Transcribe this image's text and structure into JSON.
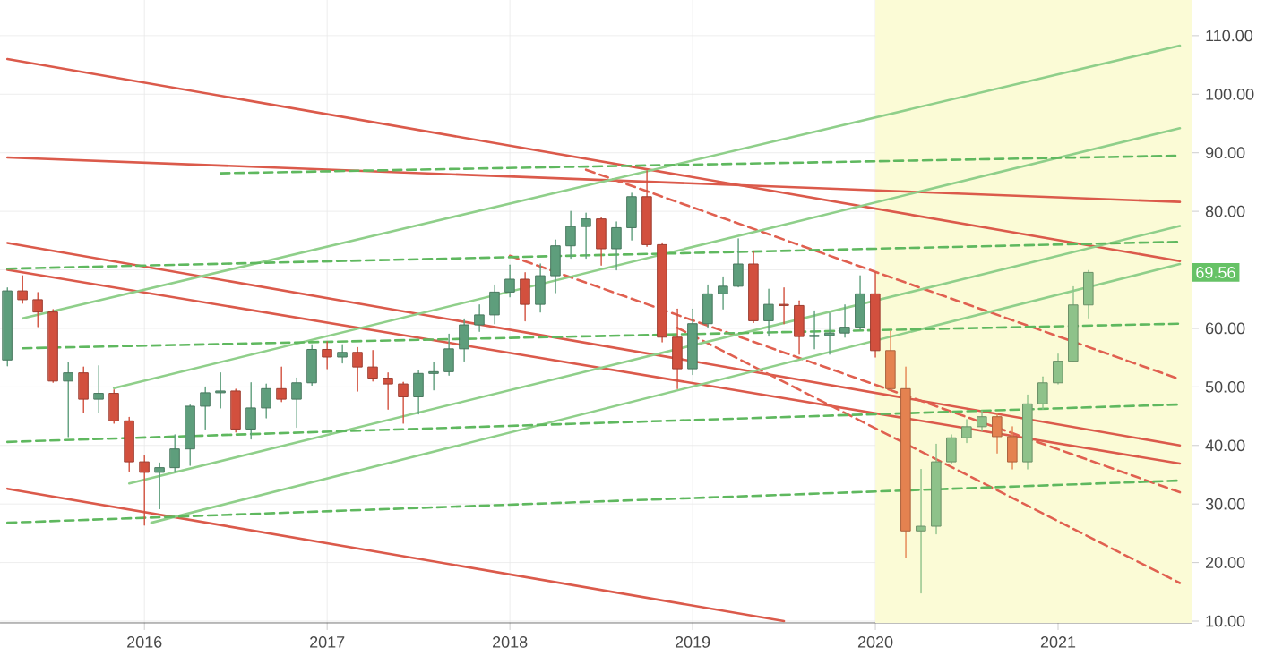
{
  "chart_data": {
    "type": "candlestick",
    "x": [
      "2015-04",
      "2015-05",
      "2015-06",
      "2015-07",
      "2015-08",
      "2015-09",
      "2015-10",
      "2015-11",
      "2015-12",
      "2016-01",
      "2016-02",
      "2016-03",
      "2016-04",
      "2016-05",
      "2016-06",
      "2016-07",
      "2016-08",
      "2016-09",
      "2016-10",
      "2016-11",
      "2016-12",
      "2017-01",
      "2017-02",
      "2017-03",
      "2017-04",
      "2017-05",
      "2017-06",
      "2017-07",
      "2017-08",
      "2017-09",
      "2017-10",
      "2017-11",
      "2017-12",
      "2018-01",
      "2018-02",
      "2018-03",
      "2018-04",
      "2018-05",
      "2018-06",
      "2018-07",
      "2018-08",
      "2018-09",
      "2018-10",
      "2018-11",
      "2018-12",
      "2019-01",
      "2019-02",
      "2019-03",
      "2019-04",
      "2019-05",
      "2019-06",
      "2019-07",
      "2019-08",
      "2019-09",
      "2019-10",
      "2019-11",
      "2019-12",
      "2020-01",
      "2020-02",
      "2020-03",
      "2020-04",
      "2020-05",
      "2020-06",
      "2020-07",
      "2020-08",
      "2020-09",
      "2020-10",
      "2020-11",
      "2020-12",
      "2021-01",
      "2021-02",
      "2021-03"
    ],
    "ohlc": [
      [
        54.6,
        66.9,
        53.6,
        66.4
      ],
      [
        66.4,
        69.0,
        64.3,
        64.9
      ],
      [
        64.9,
        66.1,
        60.3,
        62.8
      ],
      [
        62.8,
        63.2,
        50.8,
        51.0
      ],
      [
        51.0,
        54.1,
        41.5,
        52.4
      ],
      [
        52.4,
        53.4,
        45.6,
        47.9
      ],
      [
        47.9,
        53.6,
        45.6,
        48.9
      ],
      [
        48.9,
        49.5,
        43.8,
        44.2
      ],
      [
        44.2,
        44.8,
        35.6,
        37.2
      ],
      [
        37.2,
        38.2,
        26.4,
        35.4
      ],
      [
        35.4,
        37.0,
        29.2,
        36.2
      ],
      [
        36.2,
        41.8,
        35.6,
        39.4
      ],
      [
        39.4,
        46.9,
        36.6,
        46.7
      ],
      [
        46.7,
        50.0,
        42.8,
        49.0
      ],
      [
        49.0,
        52.4,
        46.4,
        49.3
      ],
      [
        49.3,
        49.6,
        42.3,
        42.8
      ],
      [
        42.8,
        50.7,
        41.1,
        46.4
      ],
      [
        46.4,
        50.5,
        44.7,
        49.7
      ],
      [
        49.7,
        53.4,
        47.5,
        47.9
      ],
      [
        47.9,
        51.5,
        43.1,
        50.7
      ],
      [
        50.7,
        57.2,
        50.3,
        56.4
      ],
      [
        56.4,
        57.7,
        53.1,
        55.1
      ],
      [
        55.1,
        57.2,
        54.1,
        55.9
      ],
      [
        55.9,
        56.7,
        49.3,
        53.4
      ],
      [
        53.4,
        56.2,
        51.0,
        51.5
      ],
      [
        51.5,
        52.4,
        46.2,
        50.5
      ],
      [
        50.5,
        50.8,
        43.8,
        48.3
      ],
      [
        48.3,
        52.8,
        45.4,
        52.3
      ],
      [
        52.3,
        54.1,
        49.5,
        52.6
      ],
      [
        52.6,
        59.0,
        52.0,
        56.5
      ],
      [
        56.5,
        61.6,
        54.4,
        60.6
      ],
      [
        60.6,
        64.0,
        59.5,
        62.3
      ],
      [
        62.3,
        67.4,
        60.8,
        66.2
      ],
      [
        66.2,
        70.8,
        65.4,
        68.4
      ],
      [
        68.4,
        69.5,
        61.3,
        64.1
      ],
      [
        64.1,
        71.0,
        62.8,
        69.0
      ],
      [
        69.0,
        75.1,
        66.1,
        74.1
      ],
      [
        74.1,
        80.0,
        72.0,
        77.4
      ],
      [
        77.4,
        79.7,
        72.0,
        78.7
      ],
      [
        78.7,
        79.0,
        70.8,
        73.6
      ],
      [
        73.6,
        78.2,
        70.0,
        77.2
      ],
      [
        77.2,
        83.1,
        75.1,
        82.5
      ],
      [
        82.5,
        86.9,
        74.0,
        74.3
      ],
      [
        74.3,
        74.6,
        57.7,
        58.5
      ],
      [
        58.5,
        63.3,
        49.7,
        53.1
      ],
      [
        53.1,
        63.3,
        52.1,
        60.8
      ],
      [
        60.8,
        67.4,
        60.2,
        65.9
      ],
      [
        65.9,
        68.8,
        63.3,
        67.2
      ],
      [
        67.2,
        75.3,
        67.1,
        71.0
      ],
      [
        71.0,
        73.1,
        61.0,
        61.3
      ],
      [
        61.3,
        66.7,
        58.7,
        64.1
      ],
      [
        64.1,
        66.9,
        60.8,
        63.9
      ],
      [
        63.9,
        64.7,
        55.6,
        58.6
      ],
      [
        58.6,
        63.0,
        56.5,
        58.8
      ],
      [
        58.8,
        62.6,
        55.6,
        59.2
      ],
      [
        59.2,
        64.0,
        58.5,
        60.2
      ],
      [
        60.2,
        69.0,
        59.8,
        65.9
      ],
      [
        65.9,
        69.5,
        55.1,
        56.2
      ],
      [
        56.2,
        59.5,
        49.5,
        49.7
      ],
      [
        49.7,
        53.4,
        20.8,
        25.4
      ],
      [
        25.4,
        35.9,
        14.8,
        26.2
      ],
      [
        26.2,
        40.2,
        24.9,
        37.2
      ],
      [
        37.2,
        41.8,
        37.0,
        41.3
      ],
      [
        41.3,
        44.4,
        40.5,
        43.2
      ],
      [
        43.2,
        45.9,
        42.5,
        44.9
      ],
      [
        44.9,
        45.4,
        38.7,
        41.5
      ],
      [
        41.5,
        43.2,
        36.0,
        37.2
      ],
      [
        37.2,
        48.6,
        36.0,
        47.1
      ],
      [
        47.1,
        51.7,
        46.2,
        50.7
      ],
      [
        50.7,
        55.6,
        50.5,
        54.4
      ],
      [
        54.4,
        67.1,
        54.4,
        64.0
      ],
      [
        64.0,
        69.9,
        61.8,
        69.56
      ]
    ],
    "colors": [
      "#5e9e7c",
      "#d2503e",
      "#d2503e",
      "#d2503e",
      "#5e9e7c",
      "#d2503e",
      "#5e9e7c",
      "#d2503e",
      "#d2503e",
      "#d2503e",
      "#5e9e7c",
      "#5e9e7c",
      "#5e9e7c",
      "#5e9e7c",
      "#5e9e7c",
      "#d2503e",
      "#5e9e7c",
      "#5e9e7c",
      "#d2503e",
      "#5e9e7c",
      "#5e9e7c",
      "#d2503e",
      "#5e9e7c",
      "#d2503e",
      "#d2503e",
      "#d2503e",
      "#d2503e",
      "#5e9e7c",
      "#5e9e7c",
      "#5e9e7c",
      "#5e9e7c",
      "#5e9e7c",
      "#5e9e7c",
      "#5e9e7c",
      "#d2503e",
      "#5e9e7c",
      "#5e9e7c",
      "#5e9e7c",
      "#5e9e7c",
      "#d2503e",
      "#5e9e7c",
      "#5e9e7c",
      "#d2503e",
      "#d2503e",
      "#d2503e",
      "#5e9e7c",
      "#5e9e7c",
      "#5e9e7c",
      "#5e9e7c",
      "#d2503e",
      "#5e9e7c",
      "#d2503e",
      "#d2503e",
      "#5e9e7c",
      "#5e9e7c",
      "#5e9e7c",
      "#5e9e7c",
      "#d2503e",
      "#e48250",
      "#e48250",
      "#8ec28a",
      "#8ec28a",
      "#8ec28a",
      "#8ec28a",
      "#8ec28a",
      "#e48250",
      "#e48250",
      "#8ec28a",
      "#8ec28a",
      "#8ec28a",
      "#8ec28a",
      "#8ec28a"
    ],
    "series": [
      {
        "type": "line",
        "line_style": "solid",
        "color": "#db5a4b",
        "x": [
          "2015-04",
          "2021-09"
        ],
        "values": [
          106.0,
          71.5
        ]
      },
      {
        "type": "line",
        "line_style": "solid",
        "color": "#db5a4b",
        "x": [
          "2015-04",
          "2021-09"
        ],
        "values": [
          89.2,
          81.6
        ]
      },
      {
        "type": "line",
        "line_style": "solid",
        "color": "#db5a4b",
        "x": [
          "2015-04",
          "2021-09"
        ],
        "values": [
          74.6,
          40.0
        ]
      },
      {
        "type": "line",
        "line_style": "solid",
        "color": "#db5a4b",
        "x": [
          "2015-04",
          "2021-09"
        ],
        "values": [
          70.0,
          36.9
        ]
      },
      {
        "type": "line",
        "line_style": "solid",
        "color": "#db5a4b",
        "x": [
          "2015-04",
          "2019-07"
        ],
        "values": [
          32.6,
          10.0
        ]
      },
      {
        "type": "line",
        "line_style": "dashed",
        "color": "#e06050",
        "x": [
          "2018-06",
          "2021-09"
        ],
        "values": [
          87.1,
          51.3
        ]
      },
      {
        "type": "line",
        "line_style": "dashed",
        "color": "#e06050",
        "x": [
          "2018-01",
          "2021-09"
        ],
        "values": [
          72.4,
          32.0
        ]
      },
      {
        "type": "line",
        "line_style": "dashed",
        "color": "#e06050",
        "x": [
          "2018-12",
          "2021-09"
        ],
        "values": [
          60.1,
          16.5
        ]
      },
      {
        "type": "line",
        "line_style": "solid",
        "color": "#8fcf8a",
        "x": [
          "2015-05",
          "2021-09"
        ],
        "values": [
          61.7,
          108.3
        ]
      },
      {
        "type": "line",
        "line_style": "solid",
        "color": "#8fcf8a",
        "x": [
          "2015-11",
          "2021-09"
        ],
        "values": [
          49.8,
          94.2
        ]
      },
      {
        "type": "line",
        "line_style": "solid",
        "color": "#8fcf8a",
        "x": [
          "2015-12",
          "2021-09"
        ],
        "values": [
          33.5,
          77.5
        ]
      },
      {
        "type": "line",
        "line_style": "solid",
        "color": "#8fcf8a",
        "x": [
          "2016-01-15",
          "2021-09"
        ],
        "values": [
          26.8,
          71.0
        ]
      },
      {
        "type": "line",
        "line_style": "dashed",
        "color": "#5fb85f",
        "x": [
          "2016-06",
          "2021-09"
        ],
        "values": [
          86.5,
          89.5
        ]
      },
      {
        "type": "line",
        "line_style": "dashed",
        "color": "#5fb85f",
        "x": [
          "2015-04",
          "2021-09"
        ],
        "values": [
          70.2,
          74.8
        ]
      },
      {
        "type": "line",
        "line_style": "dashed",
        "color": "#5fb85f",
        "x": [
          "2015-05",
          "2021-09"
        ],
        "values": [
          56.6,
          60.8
        ]
      },
      {
        "type": "line",
        "line_style": "dashed",
        "color": "#5fb85f",
        "x": [
          "2015-04",
          "2021-09"
        ],
        "values": [
          40.6,
          47.0
        ]
      },
      {
        "type": "line",
        "line_style": "dashed",
        "color": "#5fb85f",
        "x": [
          "2015-04",
          "2021-09"
        ],
        "values": [
          26.8,
          34.0
        ]
      }
    ],
    "bands": [
      {
        "axis": "x",
        "from": "2020-01",
        "to": "2021-09-24",
        "color": "#fbfbd6"
      }
    ],
    "annotations": [
      {
        "text": "69.56",
        "y": 69.56
      }
    ],
    "xlim": [
      "2015-03-17",
      "2021-09-24"
    ],
    "ylim": [
      9.7,
      116.1
    ],
    "xticks": [
      "2016",
      "2017",
      "2018",
      "2019",
      "2020",
      "2021"
    ],
    "yticks": [
      {
        "value": 10,
        "label": "10.00"
      },
      {
        "value": 20,
        "label": "20.00"
      },
      {
        "value": 30,
        "label": "30.00"
      },
      {
        "value": 40,
        "label": "40.00"
      },
      {
        "value": 50,
        "label": "50.00"
      },
      {
        "value": 60,
        "label": "60.00"
      },
      {
        "value": 70,
        "label": null
      },
      {
        "value": 80,
        "label": "80.00"
      },
      {
        "value": 90,
        "label": "90.00"
      },
      {
        "value": 100,
        "label": "100.00"
      },
      {
        "value": 110,
        "label": "110.00"
      }
    ],
    "grid": true
  }
}
